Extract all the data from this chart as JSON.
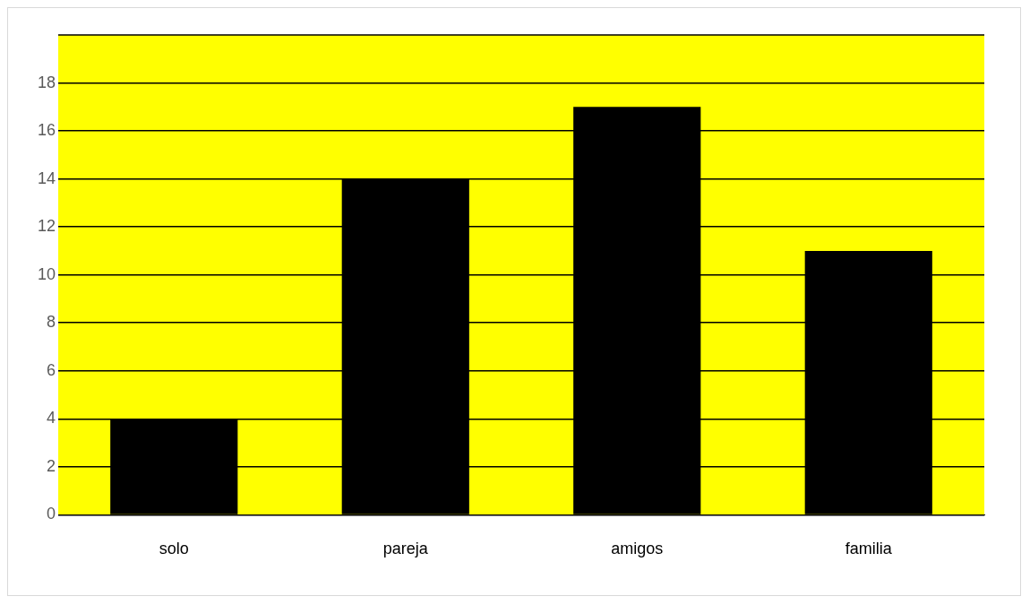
{
  "chart_data": {
    "type": "bar",
    "categories": [
      "solo",
      "pareja",
      "amigos",
      "familia"
    ],
    "values": [
      4,
      14,
      17,
      11
    ],
    "color": "#000000",
    "ylim": [
      0,
      20
    ],
    "yticks": [
      0,
      2,
      4,
      6,
      8,
      10,
      12,
      14,
      16,
      18
    ],
    "grid": "y"
  }
}
